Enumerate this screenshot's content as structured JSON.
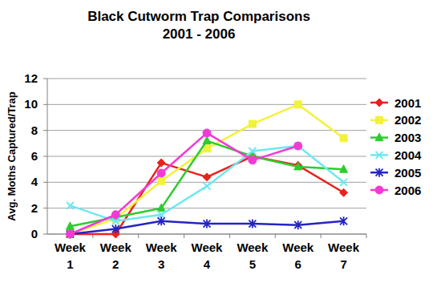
{
  "chart_data": {
    "type": "line",
    "title": "Black Cutworm Trap Comparisons",
    "subtitle": "2001 - 2006",
    "y_label": "Avg. Moths Captured/Trap",
    "categories": [
      "Week 1",
      "Week 2",
      "Week 3",
      "Week 4",
      "Week 5",
      "Week 6",
      "Week 7"
    ],
    "series": [
      {
        "name": "2001",
        "color": "#e8231c",
        "marker": "diamond",
        "values": [
          0,
          0,
          5.5,
          4.4,
          6,
          5.3,
          3.2
        ]
      },
      {
        "name": "2002",
        "color": "#f2f23a",
        "marker": "square",
        "values": [
          0,
          1.2,
          4.1,
          6.6,
          8.5,
          10,
          7.4
        ]
      },
      {
        "name": "2003",
        "color": "#2ecc2e",
        "marker": "triangle",
        "values": [
          0.6,
          1.3,
          2,
          7.2,
          6,
          5.2,
          5
        ]
      },
      {
        "name": "2004",
        "color": "#6ee8f2",
        "marker": "x",
        "values": [
          2.2,
          1,
          1.5,
          3.7,
          6.4,
          6.8,
          4
        ]
      },
      {
        "name": "2005",
        "color": "#2424c4",
        "marker": "star",
        "values": [
          0,
          0.4,
          1,
          0.8,
          0.8,
          0.7,
          1
        ]
      },
      {
        "name": "2006",
        "color": "#f23ad6",
        "marker": "circle",
        "values": [
          0,
          1.5,
          4.7,
          7.8,
          5.7,
          6.8,
          null
        ]
      }
    ],
    "ylim": [
      0,
      12
    ],
    "yticks": [
      0,
      2,
      4,
      6,
      8,
      10,
      12
    ],
    "grid": true,
    "legend": "right"
  }
}
